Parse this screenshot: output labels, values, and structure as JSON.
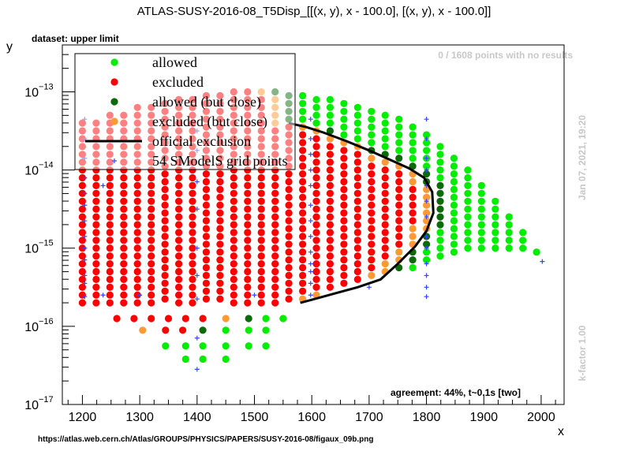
{
  "chart_data": {
    "type": "scatter",
    "title": "ATLAS-SUSY-2016-08_T5Disp_[[(x, y), x - 100.0], [(x, y), x - 100.0]]",
    "xlabel": "x",
    "ylabel": "y",
    "xlim": [
      1165,
      2040
    ],
    "ylim_log10": [
      -17,
      -12.4
    ],
    "x_ticks": [
      1200,
      1300,
      1400,
      1500,
      1600,
      1700,
      1800,
      1900,
      2000
    ],
    "y_ticks": [
      {
        "exp": -13,
        "label": "10",
        "sup": "−13"
      },
      {
        "exp": -14,
        "label": "10",
        "sup": "−14"
      },
      {
        "exp": -15,
        "label": "10",
        "sup": "−15"
      },
      {
        "exp": -16,
        "label": "10",
        "sup": "−16"
      },
      {
        "exp": -17,
        "label": "10",
        "sup": "−17"
      }
    ],
    "legend": {
      "placement": "top-left",
      "entries": [
        {
          "label": "allowed",
          "color": "#00ee00",
          "kind": "dot"
        },
        {
          "label": "excluded",
          "color": "#ff0000",
          "kind": "dot"
        },
        {
          "label": "allowed (but close)",
          "color": "#0b6b0b",
          "kind": "dot"
        },
        {
          "label": "excluded (but close)",
          "color": "#ff9933",
          "kind": "dot"
        },
        {
          "label": "official exclusion",
          "color": "#000000",
          "kind": "line"
        },
        {
          "label": "54 SModelS grid points",
          "color": "#3344ff",
          "kind": "plus"
        }
      ]
    },
    "colors": {
      "allowed": "#00ee00",
      "excluded": "#ff0000",
      "allowed_close": "#0b6b0b",
      "excluded_close": "#ff9933",
      "exclusion_line": "#000000",
      "grid_point": "#3344ff"
    },
    "point_columns": {
      "x": [
        1200,
        1224,
        1248,
        1272,
        1296,
        1320,
        1344,
        1368,
        1392,
        1416,
        1440,
        1464,
        1488,
        1512,
        1536,
        1560,
        1584,
        1608,
        1632,
        1656,
        1680,
        1704,
        1728,
        1752,
        1776,
        1800,
        1824,
        1848,
        1872,
        1896,
        1920,
        1944,
        1968,
        1992
      ],
      "upper_log10": [
        -13.4,
        -13.4,
        -13.3,
        -13.3,
        -13.2,
        -13.2,
        -13.15,
        -13.1,
        -13.1,
        -13.05,
        -13.05,
        -13.0,
        -13.0,
        -13.0,
        -13.0,
        -13.05,
        -13.05,
        -13.1,
        -13.1,
        -13.15,
        -13.2,
        -13.25,
        -13.3,
        -13.35,
        -13.45,
        -13.55,
        -13.7,
        -13.85,
        -14.0,
        -14.2,
        -14.4,
        -14.6,
        -14.8,
        -15.05
      ],
      "lower_log10": [
        -15.7,
        -15.7,
        -15.7,
        -15.7,
        -15.7,
        -15.7,
        -15.7,
        -15.7,
        -15.7,
        -15.7,
        -15.7,
        -15.7,
        -15.7,
        -15.7,
        -15.7,
        -15.7,
        -15.65,
        -15.6,
        -15.55,
        -15.5,
        -15.45,
        -15.4,
        -15.35,
        -15.3,
        -15.25,
        -15.2,
        -15.15,
        -15.1,
        -15.05,
        -15.0,
        -15.0,
        -15.0,
        -15.05,
        -15.1
      ]
    },
    "extra_points": [
      {
        "x": 1260,
        "y_log10": -15.9,
        "status": "excluded"
      },
      {
        "x": 1290,
        "y_log10": -15.9,
        "status": "excluded"
      },
      {
        "x": 1320,
        "y_log10": -15.9,
        "status": "excluded"
      },
      {
        "x": 1350,
        "y_log10": -15.9,
        "status": "excluded"
      },
      {
        "x": 1380,
        "y_log10": -15.9,
        "status": "excluded"
      },
      {
        "x": 1410,
        "y_log10": -15.9,
        "status": "excluded"
      },
      {
        "x": 1450,
        "y_log10": -15.9,
        "status": "excluded_close"
      },
      {
        "x": 1490,
        "y_log10": -15.9,
        "status": "allowed_close"
      },
      {
        "x": 1520,
        "y_log10": -15.9,
        "status": "allowed"
      },
      {
        "x": 1550,
        "y_log10": -15.9,
        "status": "allowed"
      },
      {
        "x": 1305,
        "y_log10": -16.05,
        "status": "excluded_close"
      },
      {
        "x": 1345,
        "y_log10": -16.05,
        "status": "excluded"
      },
      {
        "x": 1375,
        "y_log10": -16.05,
        "status": "excluded"
      },
      {
        "x": 1410,
        "y_log10": -16.05,
        "status": "allowed_close"
      },
      {
        "x": 1450,
        "y_log10": -16.05,
        "status": "allowed"
      },
      {
        "x": 1490,
        "y_log10": -16.05,
        "status": "allowed"
      },
      {
        "x": 1520,
        "y_log10": -16.05,
        "status": "allowed"
      },
      {
        "x": 1345,
        "y_log10": -16.25,
        "status": "allowed"
      },
      {
        "x": 1380,
        "y_log10": -16.25,
        "status": "allowed"
      },
      {
        "x": 1410,
        "y_log10": -16.25,
        "status": "allowed"
      },
      {
        "x": 1450,
        "y_log10": -16.25,
        "status": "allowed"
      },
      {
        "x": 1490,
        "y_log10": -16.25,
        "status": "allowed"
      },
      {
        "x": 1520,
        "y_log10": -16.25,
        "status": "allowed"
      },
      {
        "x": 1380,
        "y_log10": -16.42,
        "status": "allowed"
      },
      {
        "x": 1410,
        "y_log10": -16.42,
        "status": "allowed"
      },
      {
        "x": 1450,
        "y_log10": -16.42,
        "status": "allowed"
      }
    ],
    "official_exclusion": {
      "x": [
        1580,
        1600,
        1640,
        1680,
        1720,
        1750,
        1780,
        1800,
        1812,
        1810,
        1796,
        1770,
        1740,
        1700,
        1660,
        1620,
        1590,
        1560
      ],
      "y_log10": [
        -15.7,
        -15.66,
        -15.58,
        -15.5,
        -15.4,
        -15.2,
        -14.98,
        -14.78,
        -14.55,
        -14.28,
        -14.1,
        -13.98,
        -13.88,
        -13.75,
        -13.63,
        -13.52,
        -13.45,
        -13.4
      ]
    },
    "grid_points": [
      {
        "x": 1204,
        "y_log10": -13.35
      },
      {
        "x": 1204,
        "y_log10": -13.6
      },
      {
        "x": 1204,
        "y_log10": -13.85
      },
      {
        "x": 1204,
        "y_log10": -14.1
      },
      {
        "x": 1204,
        "y_log10": -14.3
      },
      {
        "x": 1204,
        "y_log10": -14.45
      },
      {
        "x": 1204,
        "y_log10": -14.65
      },
      {
        "x": 1204,
        "y_log10": -14.85
      },
      {
        "x": 1204,
        "y_log10": -15.0
      },
      {
        "x": 1204,
        "y_log10": -15.15
      },
      {
        "x": 1204,
        "y_log10": -15.35
      },
      {
        "x": 1204,
        "y_log10": -15.45
      },
      {
        "x": 1204,
        "y_log10": -15.62
      },
      {
        "x": 1400,
        "y_log10": -13.5
      },
      {
        "x": 1400,
        "y_log10": -13.75
      },
      {
        "x": 1400,
        "y_log10": -14.15
      },
      {
        "x": 1400,
        "y_log10": -14.5
      },
      {
        "x": 1400,
        "y_log10": -15.0
      },
      {
        "x": 1400,
        "y_log10": -15.35
      },
      {
        "x": 1400,
        "y_log10": -15.65
      },
      {
        "x": 1400,
        "y_log10": -16.15
      },
      {
        "x": 1400,
        "y_log10": -16.55
      },
      {
        "x": 1598,
        "y_log10": -13.35
      },
      {
        "x": 1598,
        "y_log10": -13.6
      },
      {
        "x": 1598,
        "y_log10": -13.8
      },
      {
        "x": 1598,
        "y_log10": -14.0
      },
      {
        "x": 1598,
        "y_log10": -14.2
      },
      {
        "x": 1598,
        "y_log10": -14.45
      },
      {
        "x": 1598,
        "y_log10": -14.65
      },
      {
        "x": 1598,
        "y_log10": -14.85
      },
      {
        "x": 1598,
        "y_log10": -15.05
      },
      {
        "x": 1598,
        "y_log10": -15.2
      },
      {
        "x": 1598,
        "y_log10": -15.3
      },
      {
        "x": 1598,
        "y_log10": -15.45
      },
      {
        "x": 1598,
        "y_log10": -15.6
      },
      {
        "x": 1800,
        "y_log10": -13.35
      },
      {
        "x": 1800,
        "y_log10": -13.6
      },
      {
        "x": 1800,
        "y_log10": -13.85
      },
      {
        "x": 1800,
        "y_log10": -14.0
      },
      {
        "x": 1800,
        "y_log10": -14.2
      },
      {
        "x": 1800,
        "y_log10": -14.4
      },
      {
        "x": 1800,
        "y_log10": -14.6
      },
      {
        "x": 1800,
        "y_log10": -14.85
      },
      {
        "x": 1800,
        "y_log10": -15.0
      },
      {
        "x": 1800,
        "y_log10": -15.2
      },
      {
        "x": 1800,
        "y_log10": -15.35
      },
      {
        "x": 1800,
        "y_log10": -15.5
      },
      {
        "x": 1800,
        "y_log10": -15.62
      },
      {
        "x": 2002,
        "y_log10": -15.17
      },
      {
        "x": 1236,
        "y_log10": -15.6
      },
      {
        "x": 1236,
        "y_log10": -14.2
      },
      {
        "x": 1300,
        "y_log10": -15.6
      },
      {
        "x": 1500,
        "y_log10": -15.6
      },
      {
        "x": 1700,
        "y_log10": -15.5
      }
    ]
  },
  "annotations": {
    "dataset": "dataset: upper limit",
    "no_results": "0 / 1608 points with no results",
    "date": "Jan 07, 2021, 19:20",
    "kfactor": "k-factor 1.00",
    "agreement": "agreement: 44%, t~0.1s [two]",
    "url": "https://atlas.web.cern.ch/Atlas/GROUPS/PHYSICS/PAPERS/SUSY-2016-08/figaux_09b.png"
  }
}
